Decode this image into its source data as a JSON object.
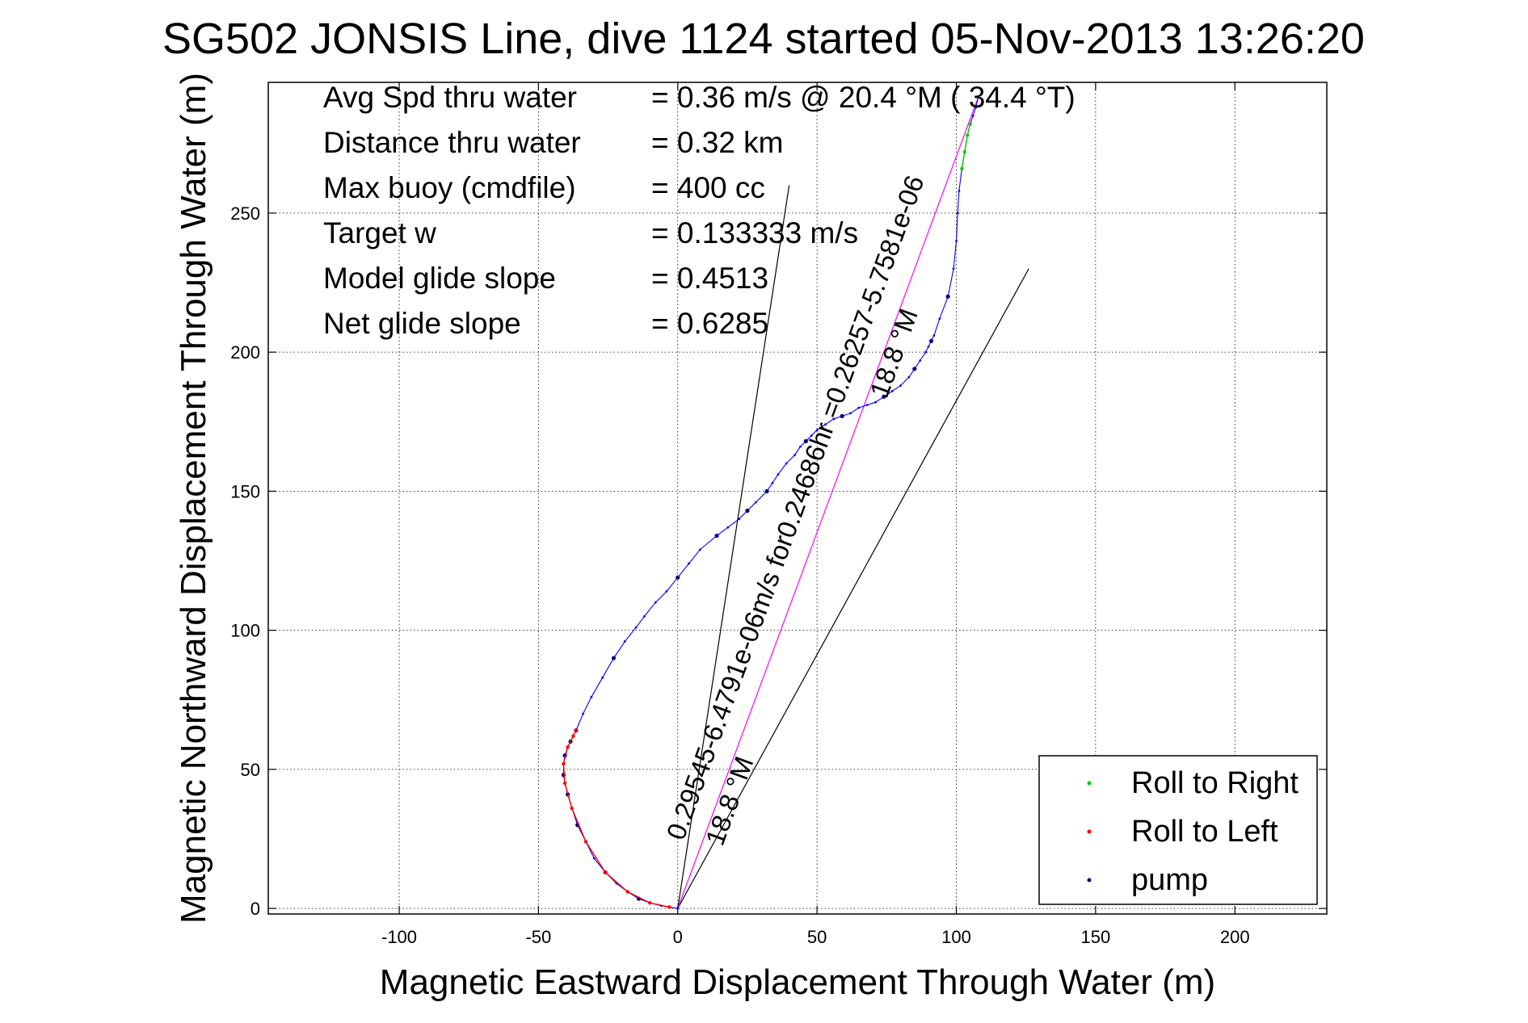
{
  "chart_data": {
    "type": "scatter",
    "title": "SG502 JONSIS Line, dive 1124 started 05-Nov-2013 13:26:20",
    "xlabel": "Magnetic Eastward Displacement Through Water (m)",
    "ylabel": "Magnetic Northward Displacement Through Water (m)",
    "xlim": [
      -147,
      233
    ],
    "ylim": [
      -2,
      297
    ],
    "x_ticks": [
      -100,
      -50,
      0,
      50,
      100,
      150,
      200
    ],
    "y_ticks": [
      0,
      50,
      100,
      150,
      200,
      250
    ],
    "grid": true,
    "legend_position": "bottom-right",
    "legend": [
      {
        "label": "Roll to Right",
        "color": "#00cc00"
      },
      {
        "label": "Roll to Left",
        "color": "#ff0000"
      },
      {
        "label": "pump",
        "color": "#000080"
      }
    ],
    "stats": [
      {
        "label": "Avg Spd thru water",
        "value": "=  0.36 m/s @  20.4 °M ( 34.4 °T)"
      },
      {
        "label": "Distance thru water",
        "value": "=  0.32 km"
      },
      {
        "label": "Max buoy (cmdfile)",
        "value": "= 400 cc"
      },
      {
        "label": "Target w",
        "value": "= 0.133333 m/s"
      },
      {
        "label": "Model glide slope",
        "value": "= 0.4513"
      },
      {
        "label": "Net glide slope",
        "value": "= 0.6285"
      }
    ],
    "annotations": [
      {
        "text": "0.29545-6.4791e-06m/s for0.24686hr =0.26257-5.7581e-06",
        "x": 2,
        "y": 24,
        "angle_deg": 70
      },
      {
        "text": "18.8 °M",
        "x": 16,
        "y": 22,
        "angle_deg": 70
      },
      {
        "text": "18.8 °M",
        "x": 75,
        "y": 183,
        "angle_deg": 70
      }
    ],
    "reference_lines": [
      {
        "name": "heading-line-1",
        "x": [
          0,
          40
        ],
        "y": [
          0,
          260
        ],
        "color": "#000000"
      },
      {
        "name": "heading-line-2",
        "x": [
          0,
          126
        ],
        "y": [
          0,
          230
        ],
        "color": "#000000"
      },
      {
        "name": "net-displacement-line",
        "x": [
          0,
          108
        ],
        "y": [
          0,
          292
        ],
        "color": "#ff00ff"
      }
    ],
    "series": [
      {
        "name": "track",
        "color": "#0000ff",
        "x": [
          0,
          -3,
          -6,
          -10,
          -14,
          -18,
          -22,
          -26,
          -30,
          -33,
          -36,
          -38,
          -39.5,
          -40.5,
          -41,
          -41,
          -40.5,
          -39.5,
          -38.5,
          -37.5,
          -36.5,
          -34,
          -31,
          -27,
          -23,
          -19,
          -15,
          -12,
          -8,
          -4,
          0,
          4,
          8,
          14,
          18,
          22,
          25,
          28,
          32,
          34,
          36,
          39,
          42,
          44,
          46,
          48,
          50,
          53,
          56,
          59,
          62,
          65,
          68,
          71,
          74,
          77,
          80,
          83,
          85,
          87,
          89,
          90,
          91,
          92,
          94,
          97,
          99,
          100,
          100.5,
          101,
          102,
          103,
          104,
          105,
          106,
          107,
          108
        ],
        "y": [
          0,
          0.5,
          1,
          2,
          3.5,
          6,
          9,
          13,
          18,
          24,
          30,
          36,
          41,
          45,
          48,
          52,
          55,
          58,
          60,
          62,
          64,
          70,
          76,
          83,
          90,
          96,
          101,
          105,
          110,
          114,
          119,
          124,
          129,
          134,
          137,
          140,
          143,
          146,
          150,
          153,
          156,
          160,
          163,
          166,
          168,
          170,
          172,
          174,
          176,
          177,
          178,
          180,
          181,
          182,
          184,
          186,
          188,
          191,
          194,
          197,
          200,
          202,
          204,
          206,
          212,
          220,
          230,
          240,
          250,
          258,
          266,
          272,
          278,
          282,
          285,
          288,
          292
        ],
        "markers": {
          "color": "#000080",
          "indices": [
            4,
            7,
            10,
            12,
            14,
            16,
            18,
            20,
            24,
            30,
            33,
            36,
            38,
            44,
            49,
            54,
            58,
            62,
            65
          ]
        }
      },
      {
        "name": "Roll to Left",
        "color": "#ff0000",
        "x": [
          -3,
          -10,
          -18,
          -26,
          -33,
          -38,
          -40.5,
          -41,
          -39.5,
          -37.5,
          -36.5
        ],
        "y": [
          0.5,
          2,
          6,
          13,
          24,
          36,
          45,
          52,
          58,
          62,
          64
        ]
      },
      {
        "name": "Roll to Right",
        "color": "#00cc00",
        "x": [
          102,
          103,
          104,
          105
        ],
        "y": [
          266,
          272,
          278,
          282
        ]
      }
    ]
  }
}
